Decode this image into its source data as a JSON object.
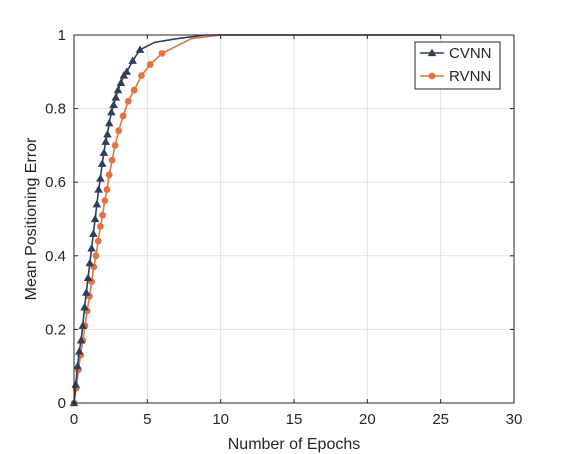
{
  "chart_data": {
    "type": "line",
    "title": "",
    "xlabel": "Number of Epochs",
    "ylabel": "Mean Positioning Error",
    "xlim": [
      0,
      30
    ],
    "ylim": [
      0,
      1
    ],
    "xticks": [
      "0",
      "5",
      "10",
      "15",
      "20",
      "25",
      "30"
    ],
    "yticks": [
      "0",
      "0.2",
      "0.4",
      "0.6",
      "0.8",
      "1"
    ],
    "grid": true,
    "legend_position": "top-right",
    "series": [
      {
        "name": "CVNN",
        "color": "#2e3f5c",
        "marker": "triangle",
        "x": [
          0,
          0.12,
          0.24,
          0.36,
          0.48,
          0.6,
          0.72,
          0.84,
          0.96,
          1.08,
          1.2,
          1.32,
          1.44,
          1.56,
          1.68,
          1.8,
          1.92,
          2.04,
          2.16,
          2.28,
          2.4,
          2.55,
          2.7,
          2.85,
          3.0,
          3.2,
          3.4,
          3.6,
          4.0,
          4.5,
          5.5,
          7.0,
          9.0,
          11.0,
          15.0,
          20.0,
          25.0
        ],
        "y": [
          0.0,
          0.05,
          0.1,
          0.14,
          0.17,
          0.21,
          0.26,
          0.3,
          0.34,
          0.38,
          0.42,
          0.46,
          0.5,
          0.54,
          0.58,
          0.61,
          0.65,
          0.68,
          0.71,
          0.73,
          0.76,
          0.79,
          0.81,
          0.83,
          0.85,
          0.87,
          0.89,
          0.9,
          0.93,
          0.96,
          0.98,
          0.99,
          1.0,
          1.0,
          1.0,
          1.0,
          1.0
        ],
        "marked_x": [
          0,
          0.12,
          0.24,
          0.36,
          0.48,
          0.6,
          0.72,
          0.84,
          0.96,
          1.08,
          1.2,
          1.32,
          1.44,
          1.56,
          1.68,
          1.8,
          1.92,
          2.04,
          2.16,
          2.28,
          2.4,
          2.55,
          2.7,
          2.85,
          3.0,
          3.2,
          3.4,
          3.6,
          4.0,
          4.5
        ],
        "marked_y": [
          0.0,
          0.05,
          0.1,
          0.14,
          0.17,
          0.21,
          0.26,
          0.3,
          0.34,
          0.38,
          0.42,
          0.46,
          0.5,
          0.54,
          0.58,
          0.61,
          0.65,
          0.68,
          0.71,
          0.73,
          0.76,
          0.79,
          0.81,
          0.83,
          0.85,
          0.87,
          0.89,
          0.9,
          0.93,
          0.96
        ]
      },
      {
        "name": "RVNN",
        "color": "#e4733f",
        "marker": "circle",
        "x": [
          0,
          0.15,
          0.3,
          0.45,
          0.6,
          0.75,
          0.9,
          1.05,
          1.2,
          1.35,
          1.5,
          1.65,
          1.8,
          1.95,
          2.1,
          2.25,
          2.4,
          2.6,
          2.8,
          3.05,
          3.35,
          3.7,
          4.1,
          4.6,
          5.2,
          6.0,
          7.0,
          8.0,
          10.0,
          13.0,
          20.0,
          25.0
        ],
        "y": [
          0.0,
          0.04,
          0.09,
          0.13,
          0.17,
          0.21,
          0.25,
          0.29,
          0.33,
          0.37,
          0.4,
          0.44,
          0.48,
          0.51,
          0.55,
          0.58,
          0.62,
          0.66,
          0.7,
          0.74,
          0.78,
          0.82,
          0.85,
          0.89,
          0.92,
          0.95,
          0.97,
          0.99,
          1.0,
          1.0,
          1.0,
          1.0
        ],
        "marked_x": [
          0,
          0.15,
          0.3,
          0.45,
          0.6,
          0.75,
          0.9,
          1.05,
          1.2,
          1.35,
          1.5,
          1.65,
          1.8,
          1.95,
          2.1,
          2.25,
          2.4,
          2.6,
          2.8,
          3.05,
          3.35,
          3.7,
          4.1,
          4.6,
          5.2,
          6.0
        ],
        "marked_y": [
          0.0,
          0.04,
          0.09,
          0.13,
          0.17,
          0.21,
          0.25,
          0.29,
          0.33,
          0.37,
          0.4,
          0.44,
          0.48,
          0.51,
          0.55,
          0.58,
          0.62,
          0.66,
          0.7,
          0.74,
          0.78,
          0.82,
          0.85,
          0.89,
          0.92,
          0.95
        ]
      }
    ]
  }
}
